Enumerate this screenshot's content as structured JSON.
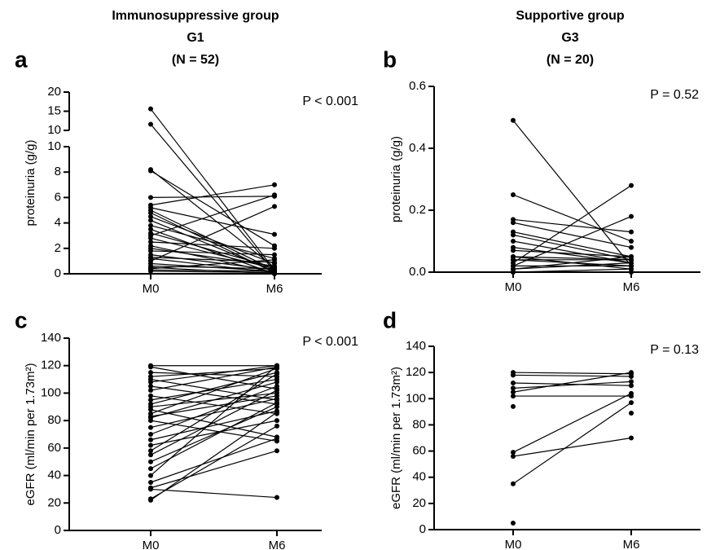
{
  "chart_data": [
    {
      "type": "line",
      "panel": "a",
      "title": "Immunosuppressive group",
      "subtitle": "G1",
      "n_label": "(N = 52)",
      "y_label": "proteinuria (g/g)",
      "annotation": "P < 0.001",
      "categories": [
        "M0",
        "M6"
      ],
      "color": "#000000",
      "ylim": [
        0,
        10
      ],
      "yticks": [
        0,
        2,
        4,
        6,
        8,
        10
      ],
      "ylim_upper": [
        10,
        20
      ],
      "yticks_upper": [
        10,
        15,
        20
      ],
      "series": [
        {
          "values": [
            15.6,
            0.3
          ]
        },
        {
          "values": [
            11.6,
            0.2
          ]
        },
        {
          "values": [
            8.2,
            0.5
          ]
        },
        {
          "values": [
            8.1,
            2.2
          ]
        },
        {
          "values": [
            6.0,
            6.1
          ]
        },
        {
          "values": [
            5.4,
            7.0
          ]
        },
        {
          "values": [
            5.2,
            3.1
          ]
        },
        {
          "values": [
            5.0,
            0.3
          ]
        },
        {
          "values": [
            4.8,
            0.1
          ]
        },
        {
          "values": [
            4.5,
            0.8
          ]
        },
        {
          "values": [
            4.2,
            0.2
          ]
        },
        {
          "values": [
            3.8,
            1.2
          ]
        },
        {
          "values": [
            3.5,
            0.0
          ]
        },
        {
          "values": [
            3.2,
            0.5
          ]
        },
        {
          "values": [
            3.0,
            6.2
          ]
        },
        {
          "values": [
            2.8,
            0.4
          ]
        },
        {
          "values": [
            2.5,
            2.0
          ]
        },
        {
          "values": [
            2.2,
            0.1
          ]
        },
        {
          "values": [
            2.0,
            0.6
          ]
        },
        {
          "values": [
            1.8,
            1.5
          ]
        },
        {
          "values": [
            1.5,
            0.3
          ]
        },
        {
          "values": [
            1.3,
            0.9
          ]
        },
        {
          "values": [
            1.2,
            0.1
          ]
        },
        {
          "values": [
            1.0,
            5.3
          ]
        },
        {
          "values": [
            0.8,
            0.2
          ]
        },
        {
          "values": [
            0.6,
            0.4
          ]
        },
        {
          "values": [
            0.5,
            0.0
          ]
        },
        {
          "values": [
            0.4,
            1.1
          ]
        },
        {
          "values": [
            0.3,
            0.2
          ]
        },
        {
          "values": [
            0.2,
            0.1
          ]
        }
      ]
    },
    {
      "type": "line",
      "panel": "b",
      "title": "Supportive group",
      "subtitle": "G3",
      "n_label": "(N = 20)",
      "y_label": "proteinuria (g/g)",
      "annotation": "P = 0.52",
      "categories": [
        "M0",
        "M6"
      ],
      "color": "#000000",
      "ylim": [
        0,
        0.6
      ],
      "yticks": [
        {
          "value": 0,
          "label": "0.0"
        },
        {
          "value": 0.2,
          "label": "0.2"
        },
        {
          "value": 0.4,
          "label": "0.4"
        },
        {
          "value": 0.6,
          "label": "0.6"
        }
      ],
      "series": [
        {
          "values": [
            0.49,
            0.02
          ]
        },
        {
          "values": [
            0.25,
            0.1
          ]
        },
        {
          "values": [
            0.17,
            0.13
          ]
        },
        {
          "values": [
            0.16,
            0.08
          ]
        },
        {
          "values": [
            0.13,
            0.05
          ]
        },
        {
          "values": [
            0.12,
            0.04
          ]
        },
        {
          "values": [
            0.08,
            0.03
          ]
        },
        {
          "values": [
            0.07,
            0.05
          ]
        },
        {
          "values": [
            0.05,
            0.04
          ]
        },
        {
          "values": [
            0.04,
            0.02
          ]
        },
        {
          "values": [
            0.03,
            0.28
          ]
        },
        {
          "values": [
            0.02,
            0.18
          ]
        },
        {
          "values": [
            0.01,
            0.03
          ]
        },
        {
          "values": [
            0.0,
            0.01
          ]
        },
        {
          "values": [
            0.04,
            0.04
          ]
        },
        {
          "values": [
            0.05,
            0.01
          ]
        },
        {
          "values": [
            0.02,
            0.02
          ]
        },
        {
          "values": [
            0.1,
            0.03
          ]
        },
        {
          "values": [
            0.0,
            0.0
          ]
        },
        {
          "values": [
            0.01,
            0.05
          ]
        }
      ]
    },
    {
      "type": "line",
      "panel": "c",
      "y_label": "eGFR (ml/min per 1.73m²)",
      "annotation": "P < 0.001",
      "categories": [
        "M0",
        "M6"
      ],
      "color": "#000000",
      "ylim": [
        0,
        140
      ],
      "yticks": [
        0,
        20,
        40,
        60,
        80,
        100,
        120,
        140
      ],
      "series": [
        {
          "values": [
            120,
            120
          ]
        },
        {
          "values": [
            119,
            103
          ]
        },
        {
          "values": [
            115,
            112
          ]
        },
        {
          "values": [
            112,
            118
          ]
        },
        {
          "values": [
            110,
            95
          ]
        },
        {
          "values": [
            108,
            120
          ]
        },
        {
          "values": [
            105,
            92
          ]
        },
        {
          "values": [
            102,
            119
          ]
        },
        {
          "values": [
            98,
            85
          ]
        },
        {
          "values": [
            95,
            110
          ]
        },
        {
          "values": [
            92,
            115
          ]
        },
        {
          "values": [
            90,
            100
          ]
        },
        {
          "values": [
            88,
            68
          ]
        },
        {
          "values": [
            85,
            118
          ]
        },
        {
          "values": [
            83,
            98
          ]
        },
        {
          "values": [
            82,
            108
          ]
        },
        {
          "values": [
            80,
            65
          ]
        },
        {
          "values": [
            75,
            96
          ]
        },
        {
          "values": [
            70,
            105
          ]
        },
        {
          "values": [
            66,
            87
          ]
        },
        {
          "values": [
            62,
            80
          ]
        },
        {
          "values": [
            58,
            114
          ]
        },
        {
          "values": [
            55,
            102
          ]
        },
        {
          "values": [
            50,
            90
          ]
        },
        {
          "values": [
            45,
            93
          ]
        },
        {
          "values": [
            40,
            120
          ]
        },
        {
          "values": [
            35,
            67
          ]
        },
        {
          "values": [
            31,
            58
          ]
        },
        {
          "values": [
            30,
            24
          ]
        },
        {
          "values": [
            23,
            76
          ]
        },
        {
          "values": [
            22,
            86
          ]
        }
      ]
    },
    {
      "type": "line",
      "panel": "d",
      "y_label": "eGFR (ml/min per 1.73m²)",
      "annotation": "P = 0.13",
      "categories": [
        "M0",
        "M6"
      ],
      "color": "#000000",
      "ylim": [
        0,
        140
      ],
      "yticks": [
        0,
        20,
        40,
        60,
        80,
        100,
        120,
        140
      ],
      "series": [
        {
          "values": [
            120,
            119
          ]
        },
        {
          "values": [
            118,
            117
          ]
        },
        {
          "values": [
            112,
            110
          ]
        },
        {
          "values": [
            108,
            113
          ]
        },
        {
          "values": [
            105,
            120
          ]
        },
        {
          "values": [
            102,
            102
          ]
        },
        {
          "values": [
            94,
            null
          ]
        },
        {
          "values": [
            59,
            104
          ]
        },
        {
          "values": [
            56,
            70
          ]
        },
        {
          "values": [
            35,
            97
          ]
        },
        {
          "values": [
            5,
            null
          ]
        },
        {
          "values": [
            null,
            89
          ]
        }
      ]
    }
  ]
}
